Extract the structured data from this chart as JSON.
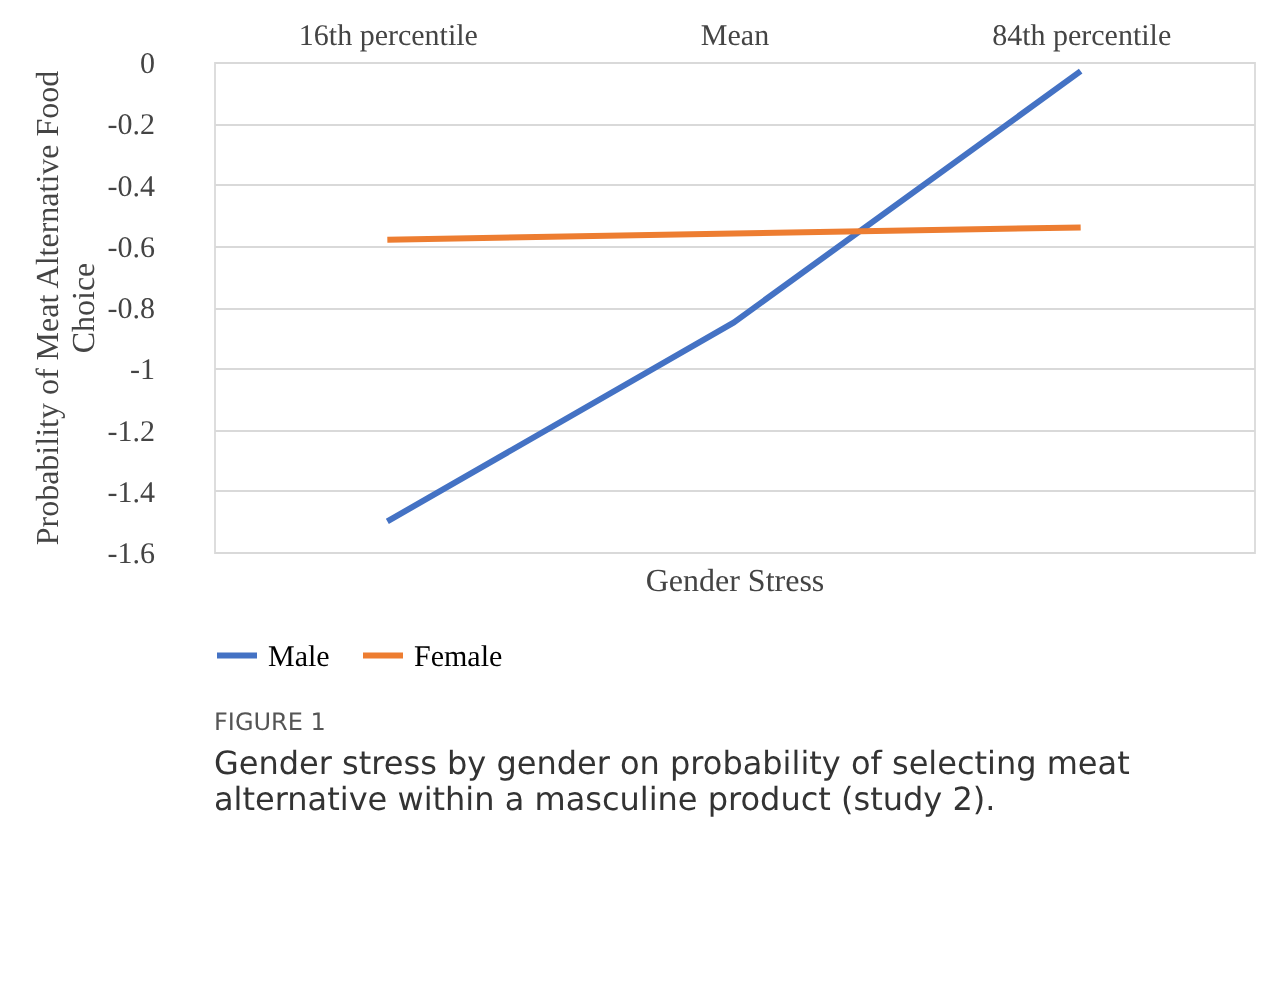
{
  "chart_data": {
    "type": "line",
    "xlabel": "Gender Stress",
    "ylabel": "Probability of Meat Alternative Food Choice",
    "categories": [
      "16th percentile",
      "Mean",
      "84th percentile"
    ],
    "series": [
      {
        "name": "Male",
        "color": "#4472c4",
        "values": [
          -1.5,
          -0.85,
          -0.03
        ]
      },
      {
        "name": "Female",
        "color": "#ed7d31",
        "values": [
          -0.58,
          -0.56,
          -0.54
        ]
      }
    ],
    "ylim": [
      -1.6,
      0
    ],
    "yticks": [
      -1.6,
      -1.4,
      -1.2,
      -1,
      -0.8,
      -0.6,
      -0.4,
      -0.2,
      0
    ],
    "grid": "y",
    "legend": "bottom",
    "marker": "none",
    "line_style": "solid",
    "annotations": [
      "FIGURE 1",
      "Gender stress by gender on probability of selecting meat alternative within a masculine product (study 2)."
    ]
  }
}
